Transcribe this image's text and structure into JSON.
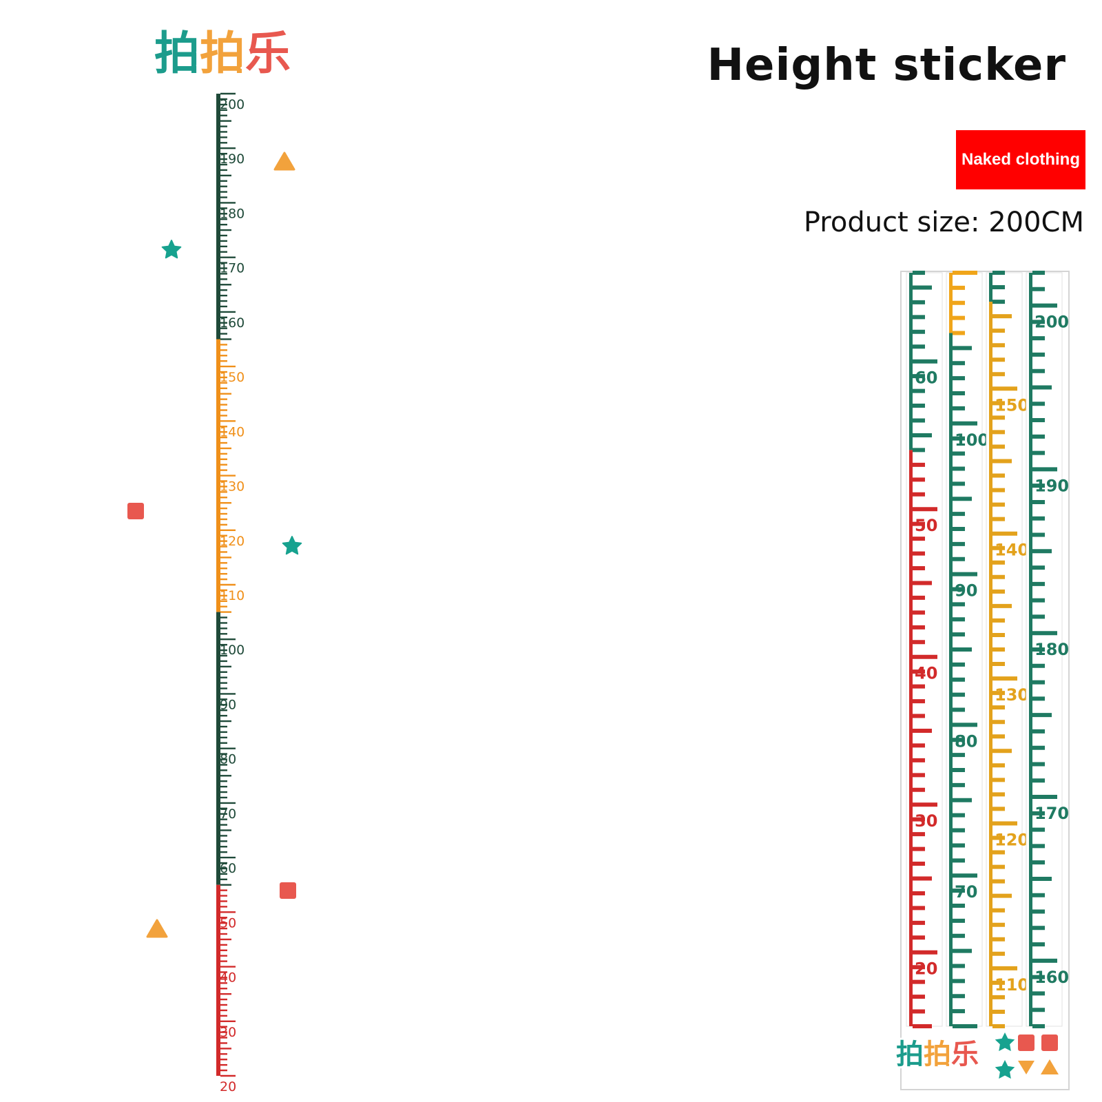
{
  "header": {
    "title": "Height sticker",
    "badge": "Naked clothing",
    "product_size": "Product size: 200CM"
  },
  "brand": {
    "logo_text": "拍拍乐",
    "logo_colors": [
      "#1c9c8c",
      "#f2a23c",
      "#e8584f"
    ]
  },
  "ruler": {
    "min": 20,
    "max": 200,
    "labels": [
      200,
      190,
      180,
      170,
      160,
      150,
      140,
      130,
      120,
      110,
      100,
      90,
      80,
      70,
      60,
      50,
      40,
      30,
      20
    ],
    "segments": [
      {
        "from": 155,
        "to": 200,
        "color": "#1f4a39"
      },
      {
        "from": 105,
        "to": 155,
        "color": "#f0901a"
      },
      {
        "from": 55,
        "to": 105,
        "color": "#1f4a39"
      },
      {
        "from": 20,
        "to": 55,
        "color": "#d22a2a"
      }
    ]
  },
  "decorations": [
    {
      "shape": "triangle-icon",
      "color": "#f2a23c"
    },
    {
      "shape": "star-icon",
      "color": "#17a28f"
    },
    {
      "shape": "square-icon",
      "color": "#e8584f"
    },
    {
      "shape": "star-icon",
      "color": "#17a28f"
    },
    {
      "shape": "square-icon",
      "color": "#e8584f"
    },
    {
      "shape": "triangle-icon",
      "color": "#f2a23c"
    }
  ],
  "sheet": {
    "columns": [
      {
        "top_label": 60,
        "segments": [
          {
            "from": 54,
            "to": 66,
            "color": "#1f7a62"
          },
          {
            "from": 15,
            "to": 54,
            "color": "#d22a2a"
          }
        ],
        "labels": [
          60,
          50,
          40,
          30,
          20
        ]
      },
      {
        "segments": [
          {
            "from": 106,
            "to": 110,
            "color": "#f0a51a"
          },
          {
            "from": 60,
            "to": 106,
            "color": "#1f7a62"
          }
        ],
        "labels": [
          100,
          90,
          80,
          70
        ]
      },
      {
        "segments": [
          {
            "from": 156,
            "to": 158,
            "color": "#1f7a62"
          },
          {
            "from": 106,
            "to": 156,
            "color": "#e3a21c"
          }
        ],
        "labels": [
          150,
          140,
          130,
          120,
          110
        ]
      },
      {
        "segments": [
          {
            "from": 156,
            "to": 202,
            "color": "#1f7a62"
          }
        ],
        "labels": [
          200,
          190,
          180,
          170,
          160
        ]
      }
    ],
    "label_colors": [
      "#1f7a62",
      "#d22a2a",
      "#e3a21c"
    ]
  }
}
